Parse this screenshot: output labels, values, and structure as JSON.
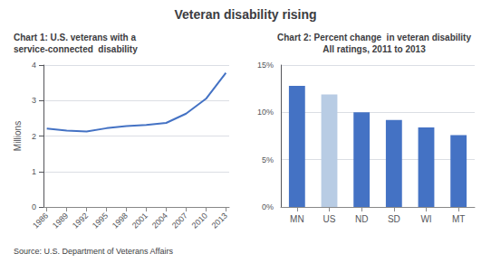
{
  "title": "Veteran disability rising",
  "annotations": [
    "Source: U.S. Department of Veterans Affairs"
  ],
  "chart_data": [
    {
      "type": "line",
      "title": "Chart 1: U.S. veterans with a\nservice-connected  disability",
      "ylabel": "Millions",
      "x": [
        1986,
        1989,
        1992,
        1995,
        1998,
        2001,
        2004,
        2007,
        2010,
        2013
      ],
      "values": [
        2.21,
        2.15,
        2.13,
        2.22,
        2.28,
        2.31,
        2.37,
        2.63,
        3.05,
        3.78
      ],
      "color": "#4472c4",
      "xlim": [
        1985.5,
        2013.5
      ],
      "xticks": [
        1986,
        1989,
        1992,
        1995,
        1998,
        2001,
        2004,
        2007,
        2010,
        2013
      ],
      "ylim": [
        0,
        4
      ],
      "yticks": [
        0,
        1,
        2,
        3,
        4
      ],
      "grid": true
    },
    {
      "type": "bar",
      "title": "Chart 2: Percent change  in veteran disability\nAll ratings, 2011 to 2013",
      "categories": [
        "MN",
        "US",
        "ND",
        "SD",
        "WI",
        "MT"
      ],
      "values": [
        12.8,
        11.9,
        10.0,
        9.2,
        8.4,
        7.6
      ],
      "colors": [
        "#4472c4",
        "#b8cce4",
        "#4472c4",
        "#4472c4",
        "#4472c4",
        "#4472c4"
      ],
      "ylim": [
        0,
        15
      ],
      "yticks": [
        {
          "value": 0,
          "label": "0%"
        },
        {
          "value": 5,
          "label": "5%"
        },
        {
          "value": 10,
          "label": "10%"
        },
        {
          "value": 15,
          "label": "15%"
        }
      ],
      "grid": true
    }
  ]
}
